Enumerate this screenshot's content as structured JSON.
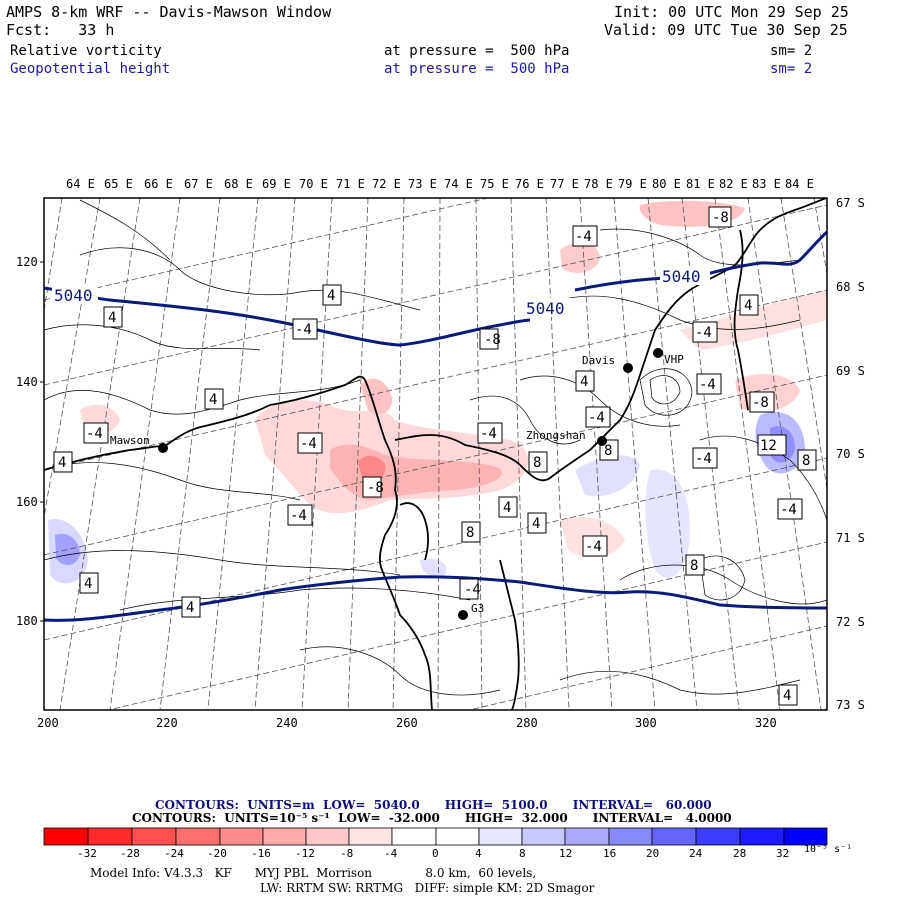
{
  "header": {
    "title": "AMPS 8-km WRF -- Davis-Mawson Window",
    "init": "Init: 00 UTC Mon 29 Sep 25",
    "fcst": "Fcst:   33 h",
    "valid": "Valid: 09 UTC Tue 30 Sep 25",
    "field1": "Relative vorticity",
    "field1_level": "at pressure =  500 hPa",
    "field1_sm": "sm= 2",
    "field2": "Geopotential height",
    "field2_level": "at pressure =  500 hPa",
    "field2_sm": "sm= 2"
  },
  "colors": {
    "height_contour": "#0b1a7a",
    "coastline": "#000000",
    "neg_vorticity": "#ff0000",
    "pos_vorticity": "#0000ff"
  },
  "map": {
    "top_lon_labels": [
      "64 E",
      "65 E",
      "66 E",
      "67 E",
      "68 E",
      "69 E",
      "70 E",
      "71 E",
      "72 E",
      "73 E",
      "74 E",
      "75 E",
      "76 E",
      "77 E",
      "78 E",
      "79 E",
      "80 E",
      "81 E",
      "82 E",
      "83 E",
      "84 E"
    ],
    "right_lat_labels": [
      "67 S",
      "68 S",
      "69 S",
      "70 S",
      "71 S",
      "72 S",
      "73 S"
    ],
    "left_y_ticks": [
      "120",
      "140",
      "160",
      "180"
    ],
    "bottom_x_ticks": [
      "200",
      "220",
      "240",
      "260",
      "280",
      "300",
      "320"
    ],
    "height_labels": [
      "5040",
      "5040",
      "5040"
    ],
    "stations": [
      {
        "name": "Mawson"
      },
      {
        "name": "Davis"
      },
      {
        "name": "VHP"
      },
      {
        "name": "Zhongshan"
      },
      {
        "name": "G3"
      }
    ],
    "contour_labels": [
      "-8",
      "-4",
      "4",
      "4",
      "-4",
      "-8",
      "4",
      "-4",
      "-4",
      "-4",
      "4",
      "4",
      "-4",
      "-4",
      "-8",
      "-4",
      "8",
      "12",
      "8",
      "-4",
      "-4",
      "-8",
      "-4",
      "4",
      "4",
      "8",
      "4",
      "-4",
      "8",
      "8",
      "4",
      "4",
      "-4",
      "4"
    ]
  },
  "legend": {
    "line1": "CONTOURS:  UNITS=m  LOW=  5040.0      HIGH=  5100.0      INTERVAL=   60.000",
    "line2": "CONTOURS:  UNITS=10⁻⁵ s⁻¹  LOW=  -32.000      HIGH=  32.000      INTERVAL=   4.0000",
    "ticks": [
      "-32",
      "-28",
      "-24",
      "-20",
      "-16",
      "-12",
      "-8",
      "-4",
      "0",
      "4",
      "8",
      "12",
      "16",
      "20",
      "24",
      "28",
      "32"
    ],
    "unit": "10⁻⁵ s⁻¹",
    "swatches": [
      "#ff0000",
      "#ff3030",
      "#ff5a5a",
      "#ff7c7c",
      "#ff9a9a",
      "#ffb8b8",
      "#ffd4d4",
      "#ffecec",
      "#ffffff",
      "#ffffff",
      "#e8e8ff",
      "#c8c8ff",
      "#a8a8ff",
      "#8888ff",
      "#6464ff",
      "#3c3cff",
      "#0000ff"
    ]
  },
  "model_info": {
    "line1": "Model Info: V4.3.3   KF      MYJ PBL  Morrison              8.0 km,  60 levels,",
    "line2": "LW: RRTM SW: RRTMG   DIFF: simple KM: 2D Smagor"
  }
}
